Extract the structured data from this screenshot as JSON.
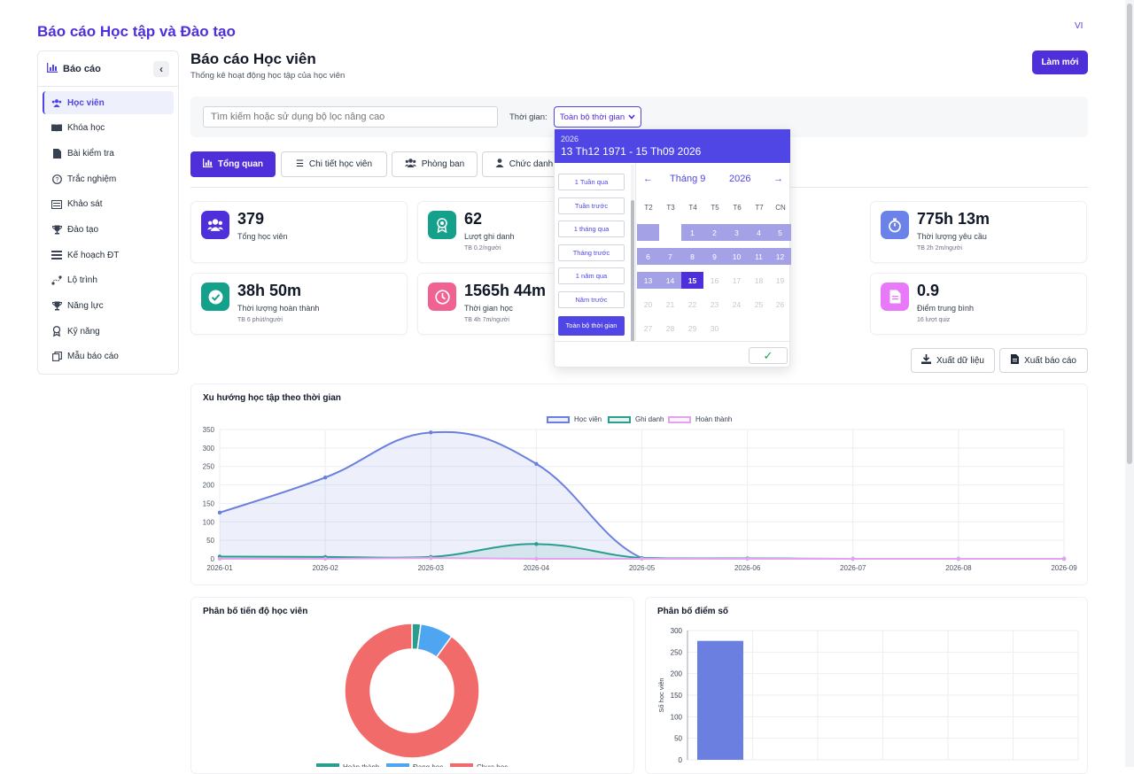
{
  "app_title": "Báo cáo Học tập và Đào tạo",
  "language": "VI",
  "sidebar": {
    "header": "Báo cáo",
    "items": [
      {
        "label": "Học viên",
        "icon": "users-icon",
        "active": true
      },
      {
        "label": "Khóa học",
        "icon": "book-icon"
      },
      {
        "label": "Bài kiểm tra",
        "icon": "document-icon"
      },
      {
        "label": "Trắc nghiệm",
        "icon": "question-icon"
      },
      {
        "label": "Khảo sát",
        "icon": "survey-icon"
      },
      {
        "label": "Đào tạo",
        "icon": "trophy-icon"
      },
      {
        "label": "Kế hoạch ĐT",
        "icon": "plan-icon"
      },
      {
        "label": "Lộ trình",
        "icon": "route-icon"
      },
      {
        "label": "Năng lực",
        "icon": "trophy-icon"
      },
      {
        "label": "Kỹ năng",
        "icon": "award-icon"
      },
      {
        "label": "Mẫu báo cáo",
        "icon": "template-icon"
      }
    ]
  },
  "header": {
    "title": "Báo cáo Học viên",
    "subtitle": "Thống kê hoạt động học tập của học viên",
    "refresh_label": "Làm mới"
  },
  "filter": {
    "search_placeholder": "Tìm kiếm hoặc sử dụng bộ lọc nâng cao",
    "time_label": "Thời gian:",
    "time_value": "Toàn bộ thời gian"
  },
  "tabs": [
    {
      "label": "Tổng quan",
      "active": true
    },
    {
      "label": "Chi tiết học viên"
    },
    {
      "label": "Phòng ban"
    },
    {
      "label": "Chức danh"
    }
  ],
  "stats": [
    {
      "value": "379",
      "label": "Tổng học viên",
      "sub": "",
      "color": "#4f2fd9",
      "icon": "users-icon"
    },
    {
      "value": "62",
      "label": "Lượt ghi danh",
      "sub": "TB 0.2/người",
      "color": "#14a08a",
      "icon": "award-icon"
    },
    {
      "value": "775h 13m",
      "label": "Thời lượng yêu cầu",
      "sub": "TB 2h 2m/người",
      "color": "#6b82e8",
      "icon": "stopwatch-icon"
    },
    {
      "value": "38h 50m",
      "label": "Thời lượng hoàn thành",
      "sub": "TB 6 phút/người",
      "color": "#14a08a",
      "icon": "check-circle-icon"
    },
    {
      "value": "1565h 44m",
      "label": "Thời gian học",
      "sub": "TB 4h 7m/người",
      "color": "#f06292",
      "icon": "clock-icon"
    },
    {
      "value": "0.9",
      "label": "Điểm trung bình",
      "sub": "16 lượt quiz",
      "color": "#e879f9",
      "icon": "file-icon"
    }
  ],
  "actions": {
    "export_data": "Xuất dữ liệu",
    "export_report": "Xuất báo cáo"
  },
  "date_picker": {
    "year": "2026",
    "range": "13 Th12 1971 - 15 Th09 2026",
    "presets": [
      "1 Tuần qua",
      "Tuần trước",
      "1 tháng qua",
      "Tháng trước",
      "1 năm qua",
      "Năm trước",
      "Toàn bộ thời gian"
    ],
    "active_preset": "Toàn bộ thời gian",
    "month": "Tháng 9",
    "month_year": "2026",
    "weekdays": [
      "T2",
      "T3",
      "T4",
      "T5",
      "T6",
      "T7",
      "CN"
    ],
    "selected_day": 15
  },
  "trend": {
    "title": "Xu hướng học tập theo thời gian"
  },
  "progress": {
    "title": "Phân bố tiến độ học viên",
    "legend": [
      "Hoàn thành",
      "Đang học",
      "Chưa học"
    ]
  },
  "scores": {
    "title": "Phân bố điểm số",
    "ylabel": "Số học viên"
  },
  "chart_data": [
    {
      "type": "line",
      "title": "Xu hướng học tập theo thời gian",
      "categories": [
        "2026-01",
        "2026-02",
        "2026-03",
        "2026-04",
        "2026-05",
        "2026-06",
        "2026-07",
        "2026-08",
        "2026-09"
      ],
      "ylim": [
        0,
        350
      ],
      "yticks": [
        0,
        50,
        100,
        150,
        200,
        250,
        300,
        350
      ],
      "series": [
        {
          "name": "Học viên",
          "color": "#6b7fe0",
          "values": [
            125,
            220,
            342,
            257,
            2,
            1,
            0,
            0,
            0
          ]
        },
        {
          "name": "Ghi danh",
          "color": "#2a9d8f",
          "values": [
            6,
            5,
            5,
            40,
            2,
            1,
            0,
            0,
            0
          ]
        },
        {
          "name": "Hoàn thành",
          "color": "#e3a3ee",
          "values": [
            0,
            0,
            2,
            0,
            0,
            0,
            0,
            0,
            0
          ]
        }
      ]
    },
    {
      "type": "pie",
      "title": "Phân bố tiến độ học viên",
      "categories": [
        "Hoàn thành",
        "Đang học",
        "Chưa học"
      ],
      "colors": [
        "#2a9d8f",
        "#4ea5f2",
        "#f26b6b"
      ],
      "values": [
        8,
        30,
        341
      ]
    },
    {
      "type": "bar",
      "title": "Phân bố điểm số",
      "ylabel": "Số học viên",
      "ylim": [
        0,
        300
      ],
      "yticks": [
        0,
        50,
        100,
        150,
        200,
        250,
        300
      ],
      "values": [
        276
      ],
      "color": "#6b7fe0"
    }
  ]
}
